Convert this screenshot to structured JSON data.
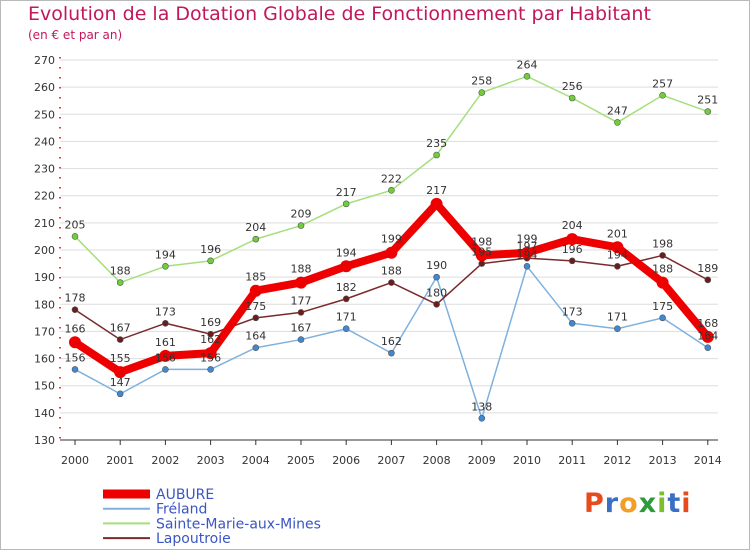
{
  "chart_data": {
    "type": "line",
    "title": "Evolution de la Dotation Globale de Fonctionnement par Habitant",
    "subtitle": "(en € et par an)",
    "categories": [
      "2000",
      "2001",
      "2002",
      "2003",
      "2004",
      "2005",
      "2006",
      "2007",
      "2008",
      "2009",
      "2010",
      "2011",
      "2012",
      "2013",
      "2014"
    ],
    "ylim": [
      130,
      270
    ],
    "yticks": [
      130,
      140,
      150,
      160,
      170,
      180,
      190,
      200,
      210,
      220,
      230,
      240,
      250,
      260,
      270
    ],
    "grid": "horizontal",
    "legend_position": "bottom-left",
    "series": [
      {
        "name": "Sainte-Marie-aux-Mines",
        "color": "#a5df7b",
        "marker": "#6fcf3a",
        "width": 1.5,
        "radius": 3,
        "values": [
          205,
          188,
          194,
          196,
          204,
          209,
          217,
          222,
          235,
          258,
          264,
          256,
          247,
          257,
          251
        ]
      },
      {
        "name": "Fréland",
        "color": "#7fb1de",
        "marker": "#3f88d3",
        "width": 1.5,
        "radius": 3,
        "values": [
          156,
          147,
          156,
          156,
          164,
          167,
          171,
          162,
          190,
          138,
          194,
          173,
          171,
          175,
          164
        ]
      },
      {
        "name": "Lapoutroie",
        "color": "#7a2a2a",
        "marker": "#6b1c1c",
        "width": 1.5,
        "radius": 3,
        "values": [
          178,
          167,
          173,
          169,
          175,
          177,
          182,
          188,
          180,
          195,
          197,
          196,
          194,
          198,
          189
        ]
      },
      {
        "name": "AUBURE",
        "color": "#ee0000",
        "marker": "#ee0000",
        "width": 8,
        "radius": 6,
        "values": [
          166,
          155,
          161,
          162,
          185,
          188,
          194,
          199,
          217,
          198,
          199,
          204,
          201,
          188,
          168
        ]
      }
    ],
    "legend_order": [
      "AUBURE",
      "Fréland",
      "Sainte-Marie-aux-Mines",
      "Lapoutroie"
    ]
  },
  "logo": {
    "text": "Proxiti",
    "colors": [
      "#e8491d",
      "#3a6fc4",
      "#f0a028",
      "#2e9a3c",
      "#7bbf2b",
      "#3a6fc4",
      "#e8491d"
    ]
  }
}
